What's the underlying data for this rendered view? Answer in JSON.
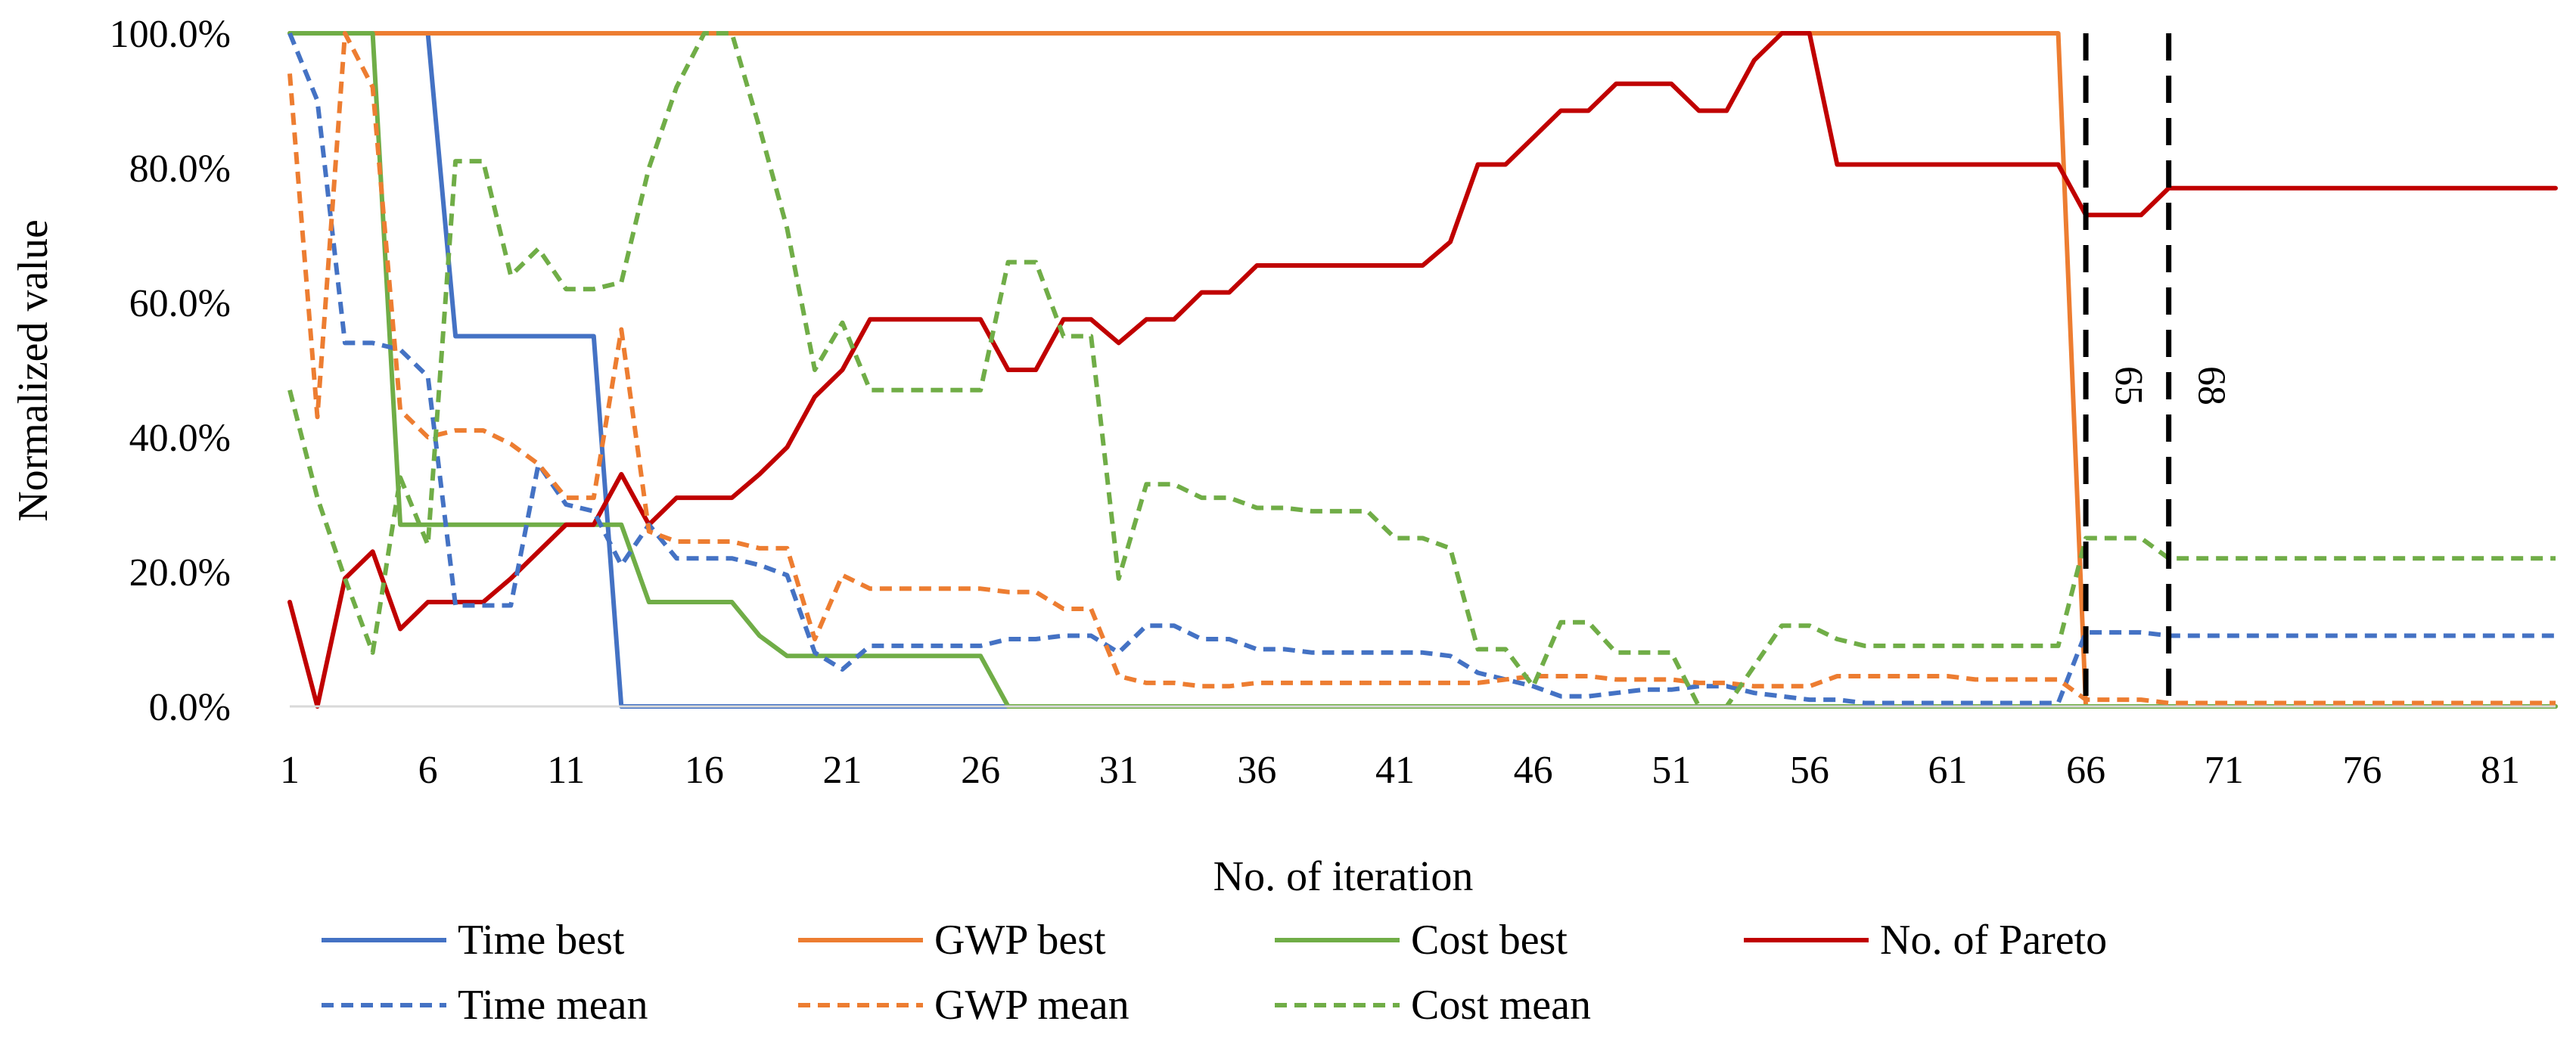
{
  "chart_data": {
    "type": "line",
    "title": "",
    "xlabel": "No. of  iteration",
    "ylabel": "Normalized value",
    "xlim": [
      1,
      83
    ],
    "ylim": [
      0,
      100
    ],
    "x_ticks": [
      1,
      6,
      11,
      16,
      21,
      26,
      31,
      36,
      41,
      46,
      51,
      56,
      61,
      66,
      71,
      76,
      81
    ],
    "y_ticks": [
      0,
      20,
      40,
      60,
      80,
      100
    ],
    "y_tick_labels": [
      "0.0%",
      "20.0%",
      "40.0%",
      "60.0%",
      "80.0%",
      "100.0%"
    ],
    "legend_position": "bottom",
    "series": [
      {
        "name": "Time best",
        "color": "#4472C4",
        "style": "solid",
        "x": [
          1,
          6,
          7,
          12,
          13,
          83
        ],
        "y": [
          100,
          100,
          55,
          55,
          0,
          0
        ]
      },
      {
        "name": "GWP best",
        "color": "#ED7D31",
        "style": "solid",
        "x": [
          1,
          65,
          66,
          83
        ],
        "y": [
          100,
          100,
          0,
          0
        ]
      },
      {
        "name": "Cost best",
        "color": "#70AD47",
        "style": "solid",
        "x": [
          1,
          4,
          5,
          12,
          13,
          14,
          15,
          17,
          18,
          19,
          20,
          21,
          22,
          26,
          27,
          83
        ],
        "y": [
          100,
          100,
          27,
          27,
          27,
          15.5,
          15.5,
          15.5,
          10.5,
          7.5,
          7.5,
          7.5,
          7.5,
          7.5,
          0,
          0
        ]
      },
      {
        "name": "No. of Pareto",
        "color": "#C00000",
        "style": "solid",
        "x": [
          1,
          2,
          3,
          4,
          5,
          6,
          7,
          8,
          9,
          10,
          11,
          12,
          13,
          14,
          15,
          16,
          17,
          18,
          19,
          20,
          21,
          22,
          23,
          24,
          25,
          26,
          27,
          28,
          29,
          30,
          31,
          32,
          33,
          34,
          35,
          36,
          37,
          38,
          39,
          40,
          41,
          42,
          43,
          44,
          45,
          46,
          47,
          48,
          49,
          50,
          51,
          52,
          53,
          54,
          55,
          56,
          57,
          58,
          59,
          60,
          61,
          62,
          63,
          64,
          65,
          66,
          67,
          68,
          69,
          70,
          71,
          72,
          73,
          74,
          75,
          76,
          77,
          78,
          79,
          80,
          81,
          82,
          83
        ],
        "y": [
          15.5,
          0,
          19,
          23,
          11.5,
          15.5,
          15.5,
          15.5,
          19,
          23,
          27,
          27,
          34.5,
          27,
          31,
          31,
          31,
          34.5,
          38.5,
          46,
          50,
          57.5,
          57.5,
          57.5,
          57.5,
          57.5,
          50,
          50,
          57.5,
          57.5,
          54,
          57.5,
          57.5,
          61.5,
          61.5,
          65.5,
          65.5,
          65.5,
          65.5,
          65.5,
          65.5,
          65.5,
          69,
          80.5,
          80.5,
          84.5,
          88.5,
          88.5,
          92.5,
          92.5,
          92.5,
          88.5,
          88.5,
          96,
          100,
          100,
          80.5,
          80.5,
          80.5,
          80.5,
          80.5,
          80.5,
          80.5,
          80.5,
          80.5,
          73,
          73,
          73,
          77,
          77,
          77,
          77,
          77,
          77,
          77,
          77,
          77,
          77,
          77,
          77,
          77,
          77,
          77
        ]
      },
      {
        "name": "Time mean",
        "color": "#4472C4",
        "style": "dashed",
        "x": [
          1,
          2,
          3,
          4,
          5,
          6,
          7,
          8,
          9,
          10,
          11,
          12,
          13,
          14,
          15,
          16,
          17,
          18,
          19,
          20,
          21,
          22,
          23,
          24,
          25,
          26,
          27,
          28,
          29,
          30,
          31,
          32,
          33,
          34,
          35,
          36,
          37,
          38,
          39,
          40,
          41,
          42,
          43,
          44,
          45,
          46,
          47,
          48,
          49,
          50,
          51,
          52,
          53,
          54,
          55,
          56,
          57,
          58,
          59,
          60,
          61,
          62,
          63,
          64,
          65,
          66,
          67,
          68,
          69,
          70,
          71,
          72,
          73,
          74,
          75,
          76,
          77,
          78,
          79,
          80,
          81,
          82,
          83
        ],
        "y": [
          100,
          90,
          54,
          54,
          53,
          49,
          15,
          15,
          15,
          36,
          30,
          29,
          21,
          27,
          22,
          22,
          22,
          21,
          19.5,
          8,
          5.5,
          9,
          9,
          9,
          9,
          9,
          10,
          10,
          10.5,
          10.5,
          8,
          12,
          12,
          10,
          10,
          8.5,
          8.5,
          8,
          8,
          8,
          8,
          8,
          7.5,
          5,
          4,
          3,
          1.5,
          1.5,
          2,
          2.5,
          2.5,
          3,
          3,
          2,
          1.5,
          1,
          1,
          0.5,
          0.5,
          0.5,
          0.5,
          0.5,
          0.5,
          0.5,
          0.5,
          11,
          11,
          11,
          10.5,
          10.5,
          10.5,
          10.5,
          10.5,
          10.5,
          10.5,
          10.5,
          10.5,
          10.5,
          10.5,
          10.5,
          10.5,
          10.5,
          10.5
        ]
      },
      {
        "name": "GWP mean",
        "color": "#ED7D31",
        "style": "dashed",
        "x": [
          1,
          2,
          3,
          4,
          5,
          6,
          7,
          8,
          9,
          10,
          11,
          12,
          13,
          14,
          15,
          16,
          17,
          18,
          19,
          20,
          21,
          22,
          23,
          24,
          25,
          26,
          27,
          28,
          29,
          30,
          31,
          32,
          33,
          34,
          35,
          36,
          37,
          38,
          39,
          40,
          41,
          42,
          43,
          44,
          45,
          46,
          47,
          48,
          49,
          50,
          51,
          52,
          53,
          54,
          55,
          56,
          57,
          58,
          59,
          60,
          61,
          62,
          63,
          64,
          65,
          66,
          67,
          68,
          69,
          70,
          71,
          72,
          73,
          74,
          75,
          76,
          77,
          78,
          79,
          80,
          81,
          82,
          83
        ],
        "y": [
          94,
          43,
          100,
          92,
          44,
          40,
          41,
          41,
          39,
          36,
          31,
          31,
          56,
          26,
          24.5,
          24.5,
          24.5,
          23.5,
          23.5,
          10,
          19.5,
          17.5,
          17.5,
          17.5,
          17.5,
          17.5,
          17,
          17,
          14.5,
          14.5,
          4.5,
          3.5,
          3.5,
          3,
          3,
          3.5,
          3.5,
          3.5,
          3.5,
          3.5,
          3.5,
          3.5,
          3.5,
          3.5,
          4,
          4.5,
          4.5,
          4.5,
          4,
          4,
          4,
          3.5,
          3.5,
          3,
          3,
          3,
          4.5,
          4.5,
          4.5,
          4.5,
          4.5,
          4,
          4,
          4,
          4,
          1,
          1,
          1,
          0.5,
          0.5,
          0.5,
          0.5,
          0.5,
          0.5,
          0.5,
          0.5,
          0.5,
          0.5,
          0.5,
          0.5,
          0.5,
          0.5,
          0.5
        ]
      },
      {
        "name": "Cost mean",
        "color": "#70AD47",
        "style": "dashed",
        "x": [
          1,
          2,
          3,
          4,
          5,
          6,
          7,
          8,
          9,
          10,
          11,
          12,
          13,
          14,
          15,
          16,
          17,
          18,
          19,
          20,
          21,
          22,
          23,
          24,
          25,
          26,
          27,
          28,
          29,
          30,
          31,
          32,
          33,
          34,
          35,
          36,
          37,
          38,
          39,
          40,
          41,
          42,
          43,
          44,
          45,
          46,
          47,
          48,
          49,
          50,
          51,
          52,
          53,
          54,
          55,
          56,
          57,
          58,
          59,
          60,
          61,
          62,
          63,
          64,
          65,
          66,
          67,
          68,
          69,
          70,
          71,
          72,
          73,
          74,
          75,
          76,
          77,
          78,
          79,
          80,
          81,
          82,
          83
        ],
        "y": [
          47,
          31,
          19,
          8,
          34,
          24,
          81,
          81,
          64,
          68,
          62,
          62,
          63,
          80,
          92,
          100,
          100,
          86,
          71,
          50,
          57,
          47,
          47,
          47,
          47,
          47,
          66,
          66,
          55,
          55,
          19,
          33,
          33,
          31,
          31,
          29.5,
          29.5,
          29,
          29,
          29,
          25,
          25,
          23.5,
          8.5,
          8.5,
          3,
          12.5,
          12.5,
          8,
          8,
          8,
          0,
          0,
          6,
          12,
          12,
          10,
          9,
          9,
          9,
          9,
          9,
          9,
          9,
          9,
          25,
          25,
          25,
          22,
          22,
          22,
          22,
          22,
          22,
          22,
          22,
          22,
          22,
          22,
          22,
          22,
          22,
          22
        ]
      }
    ],
    "vertical_markers": [
      {
        "x": 66,
        "label": "65"
      },
      {
        "x": 69,
        "label": "68"
      }
    ]
  }
}
